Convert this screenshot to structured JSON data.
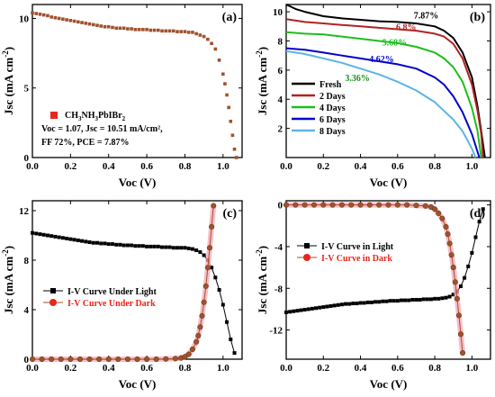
{
  "chart_data": [
    {
      "panel": "(a)",
      "type": "scatter",
      "xlabel": "Voc (V)",
      "ylabel": "Jsc (mA cm⁻²)",
      "xlim": [
        0,
        1.1
      ],
      "ylim": [
        0,
        11
      ],
      "xticks": [
        0.0,
        0.2,
        0.4,
        0.6,
        0.8,
        1.0
      ],
      "yticks": [
        0,
        5,
        10
      ],
      "tick_labels_x": [
        "0.0",
        "0.2",
        "0.4",
        "0.6",
        "0.8",
        "1.0"
      ],
      "tick_labels_y": [
        "0",
        "5",
        "10"
      ],
      "grid": false,
      "series": [
        {
          "color": "#a0522d",
          "marker": "square",
          "x": [
            0.0,
            0.02,
            0.04,
            0.06,
            0.08,
            0.1,
            0.12,
            0.14,
            0.16,
            0.18,
            0.2,
            0.22,
            0.24,
            0.26,
            0.28,
            0.3,
            0.32,
            0.34,
            0.36,
            0.38,
            0.4,
            0.42,
            0.44,
            0.46,
            0.48,
            0.5,
            0.52,
            0.54,
            0.56,
            0.58,
            0.6,
            0.62,
            0.64,
            0.66,
            0.68,
            0.7,
            0.72,
            0.74,
            0.76,
            0.78,
            0.8,
            0.82,
            0.84,
            0.86,
            0.88,
            0.9,
            0.92,
            0.94,
            0.96,
            0.98,
            1.0,
            1.01,
            1.02,
            1.03,
            1.04,
            1.05,
            1.06,
            1.07
          ],
          "y": [
            10.4,
            10.35,
            10.3,
            10.25,
            10.2,
            10.1,
            10.05,
            10.0,
            9.95,
            9.9,
            9.85,
            9.8,
            9.75,
            9.7,
            9.65,
            9.6,
            9.55,
            9.5,
            9.45,
            9.4,
            9.4,
            9.35,
            9.3,
            9.3,
            9.3,
            9.25,
            9.25,
            9.2,
            9.2,
            9.2,
            9.2,
            9.15,
            9.15,
            9.15,
            9.1,
            9.1,
            9.1,
            9.1,
            9.05,
            9.05,
            9.05,
            9.0,
            9.0,
            8.9,
            8.8,
            8.7,
            8.5,
            8.2,
            7.8,
            7.0,
            6.0,
            5.3,
            4.5,
            3.6,
            2.6,
            1.6,
            0.6,
            0.0
          ]
        }
      ],
      "legend": {
        "placement": "bottom-left",
        "marker_color": "#e8261c",
        "label": "CH3NH3PbIBr2",
        "lines": [
          "Voc = 1.07, Jsc = 10.51 mA/cm²,",
          "FF 72%, PCE = 7.87%"
        ]
      }
    },
    {
      "panel": "(b)",
      "type": "line",
      "xlabel": "Voc (V)",
      "ylabel": "Jsc (mA cm⁻²)",
      "xlim": [
        0,
        1.1
      ],
      "ylim": [
        0,
        10.5
      ],
      "xticks": [
        0.0,
        0.2,
        0.4,
        0.6,
        0.8,
        1.0
      ],
      "yticks": [
        2,
        4,
        6,
        8,
        10
      ],
      "tick_labels_x": [
        "0.0",
        "0.2",
        "0.4",
        "0.6",
        "0.8",
        "1.0"
      ],
      "tick_labels_y": [
        "2",
        "4",
        "6",
        "8",
        "10"
      ],
      "grid": false,
      "legend_placement": "bottom-left",
      "series": [
        {
          "name": "Fresh",
          "color": "#000000",
          "annotation": "7.87%",
          "annotation_color": "#000000",
          "annotation_at": [
            0.82,
            9.55
          ],
          "x": [
            0.0,
            0.05,
            0.1,
            0.2,
            0.3,
            0.4,
            0.5,
            0.6,
            0.7,
            0.8,
            0.85,
            0.9,
            0.95,
            1.0,
            1.03,
            1.05,
            1.07
          ],
          "y": [
            10.5,
            10.2,
            10.0,
            9.7,
            9.55,
            9.45,
            9.35,
            9.3,
            9.2,
            9.0,
            8.7,
            8.2,
            7.2,
            5.5,
            3.5,
            1.8,
            0.0
          ]
        },
        {
          "name": "2 Days",
          "color": "#b22222",
          "annotation": "6.8%",
          "annotation_color": "#b22222",
          "annotation_at": [
            0.7,
            8.75
          ],
          "x": [
            0.0,
            0.1,
            0.2,
            0.3,
            0.4,
            0.5,
            0.6,
            0.7,
            0.8,
            0.85,
            0.9,
            0.95,
            1.0,
            1.03,
            1.05,
            1.06
          ],
          "y": [
            9.5,
            9.3,
            9.2,
            9.1,
            9.0,
            8.9,
            8.8,
            8.7,
            8.5,
            8.3,
            7.8,
            6.8,
            5.0,
            3.2,
            1.6,
            0.0
          ]
        },
        {
          "name": "4 Days",
          "color": "#1bbf1b",
          "annotation": "5.68%",
          "annotation_color": "#1bbf1b",
          "annotation_at": [
            0.65,
            7.7
          ],
          "x": [
            0.0,
            0.1,
            0.2,
            0.3,
            0.4,
            0.5,
            0.6,
            0.7,
            0.8,
            0.85,
            0.9,
            0.95,
            1.0,
            1.03,
            1.05
          ],
          "y": [
            8.6,
            8.5,
            8.45,
            8.3,
            8.15,
            8.0,
            7.85,
            7.6,
            7.2,
            6.8,
            6.2,
            5.2,
            3.4,
            1.8,
            0.0
          ]
        },
        {
          "name": "6 Days",
          "color": "#0000cd",
          "annotation": "4.62%",
          "annotation_color": "#0000cd",
          "annotation_at": [
            0.58,
            6.55
          ],
          "x": [
            0.0,
            0.1,
            0.2,
            0.3,
            0.4,
            0.5,
            0.6,
            0.7,
            0.8,
            0.85,
            0.9,
            0.95,
            1.0,
            1.02,
            1.04
          ],
          "y": [
            7.5,
            7.4,
            7.2,
            7.0,
            6.8,
            6.6,
            6.4,
            6.1,
            5.5,
            5.0,
            4.2,
            3.1,
            1.6,
            0.8,
            0.0
          ]
        },
        {
          "name": "8 Days",
          "color": "#5bb5e6",
          "annotation": "3.36%",
          "annotation_color": "#1a8f1a",
          "annotation_at": [
            0.45,
            5.25
          ],
          "x": [
            0.0,
            0.1,
            0.2,
            0.3,
            0.4,
            0.5,
            0.6,
            0.7,
            0.8,
            0.85,
            0.9,
            0.95,
            0.98,
            1.0,
            1.02
          ],
          "y": [
            7.3,
            7.1,
            6.8,
            6.5,
            6.1,
            5.7,
            5.2,
            4.6,
            3.8,
            3.2,
            2.6,
            1.8,
            1.1,
            0.6,
            0.0
          ]
        }
      ]
    },
    {
      "panel": "(c)",
      "type": "line",
      "xlabel": "Voc (V)",
      "ylabel": "Jsc (mA cm⁻²)",
      "xlim": [
        0,
        1.1
      ],
      "ylim": [
        0,
        12.8
      ],
      "xticks": [
        0.0,
        0.2,
        0.4,
        0.6,
        0.8,
        1.0
      ],
      "yticks": [
        0,
        4,
        8,
        12
      ],
      "tick_labels_x": [
        "0.0",
        "0.2",
        "0.4",
        "0.6",
        "0.8",
        "1.0"
      ],
      "tick_labels_y": [
        "0",
        "4",
        "8",
        "12"
      ],
      "grid": false,
      "legend_placement": "bottom-left",
      "series": [
        {
          "name": "I-V Curve Under Light",
          "color": "#000000",
          "marker": "square",
          "label_color": "#000000",
          "x": [
            0.0,
            0.02,
            0.04,
            0.06,
            0.08,
            0.1,
            0.12,
            0.14,
            0.16,
            0.18,
            0.2,
            0.22,
            0.24,
            0.26,
            0.28,
            0.3,
            0.32,
            0.34,
            0.36,
            0.38,
            0.4,
            0.42,
            0.44,
            0.46,
            0.48,
            0.5,
            0.52,
            0.54,
            0.56,
            0.58,
            0.6,
            0.62,
            0.64,
            0.66,
            0.68,
            0.7,
            0.72,
            0.74,
            0.76,
            0.78,
            0.8,
            0.82,
            0.84,
            0.86,
            0.88,
            0.9,
            0.92,
            0.94,
            0.96,
            0.98,
            1.0,
            1.02,
            1.04,
            1.06
          ],
          "y": [
            10.2,
            10.15,
            10.1,
            10.05,
            10.0,
            9.95,
            9.9,
            9.85,
            9.8,
            9.75,
            9.7,
            9.65,
            9.6,
            9.55,
            9.5,
            9.45,
            9.4,
            9.4,
            9.35,
            9.35,
            9.3,
            9.3,
            9.25,
            9.25,
            9.2,
            9.2,
            9.2,
            9.15,
            9.15,
            9.15,
            9.1,
            9.1,
            9.1,
            9.1,
            9.05,
            9.05,
            9.05,
            9.0,
            9.0,
            9.0,
            9.0,
            8.95,
            8.9,
            8.8,
            8.65,
            8.4,
            8.0,
            7.4,
            6.6,
            5.6,
            4.4,
            3.0,
            1.6,
            0.5
          ]
        },
        {
          "name": "I-V Curve Under Dark",
          "color": "#a0522d",
          "marker": "circle",
          "label_color": "#e8261c",
          "x": [
            0.0,
            0.05,
            0.1,
            0.15,
            0.2,
            0.25,
            0.3,
            0.35,
            0.4,
            0.45,
            0.5,
            0.55,
            0.6,
            0.65,
            0.7,
            0.75,
            0.78,
            0.8,
            0.82,
            0.84,
            0.86,
            0.87,
            0.88,
            0.89,
            0.9,
            0.91,
            0.92,
            0.93,
            0.94,
            0.95
          ],
          "y": [
            0.0,
            0.0,
            0.0,
            0.0,
            0.0,
            0.0,
            0.0,
            0.0,
            0.0,
            0.0,
            0.0,
            0.0,
            0.0,
            0.0,
            0.02,
            0.05,
            0.1,
            0.2,
            0.4,
            0.8,
            1.4,
            1.9,
            2.6,
            3.5,
            4.6,
            5.9,
            7.4,
            9.0,
            10.7,
            12.4
          ]
        }
      ]
    },
    {
      "panel": "(d)",
      "type": "line",
      "xlabel": "Voc (V)",
      "ylabel": "Jsc (mA cm⁻²)",
      "xlim": [
        0,
        1.1
      ],
      "ylim": [
        -14.8,
        0.4
      ],
      "xticks": [
        0.0,
        0.2,
        0.4,
        0.6,
        0.8,
        1.0
      ],
      "yticks": [
        0,
        -4,
        -8,
        -12
      ],
      "tick_labels_x": [
        "0.0",
        "0.2",
        "0.4",
        "0.6",
        "0.8",
        "1.0"
      ],
      "tick_labels_y": [
        "0",
        "-4",
        "-8",
        "-12"
      ],
      "grid": false,
      "legend_placement": "middle-left",
      "series": [
        {
          "name": "I-V Curve in Light",
          "color": "#000000",
          "marker": "square",
          "label_color": "#000000",
          "x": [
            0.0,
            0.02,
            0.04,
            0.06,
            0.08,
            0.1,
            0.12,
            0.14,
            0.16,
            0.18,
            0.2,
            0.22,
            0.24,
            0.26,
            0.28,
            0.3,
            0.32,
            0.34,
            0.36,
            0.38,
            0.4,
            0.42,
            0.44,
            0.46,
            0.48,
            0.5,
            0.52,
            0.54,
            0.56,
            0.58,
            0.6,
            0.62,
            0.64,
            0.66,
            0.68,
            0.7,
            0.72,
            0.74,
            0.76,
            0.78,
            0.8,
            0.82,
            0.84,
            0.86,
            0.88,
            0.9,
            0.92,
            0.94,
            0.96,
            0.98,
            1.0,
            1.02,
            1.04,
            1.06
          ],
          "y": [
            -10.3,
            -10.25,
            -10.2,
            -10.15,
            -10.1,
            -10.05,
            -10.0,
            -9.95,
            -9.9,
            -9.85,
            -9.8,
            -9.75,
            -9.7,
            -9.65,
            -9.6,
            -9.55,
            -9.5,
            -9.5,
            -9.45,
            -9.45,
            -9.4,
            -9.4,
            -9.35,
            -9.35,
            -9.3,
            -9.3,
            -9.25,
            -9.25,
            -9.2,
            -9.2,
            -9.2,
            -9.15,
            -9.15,
            -9.15,
            -9.1,
            -9.1,
            -9.1,
            -9.05,
            -9.05,
            -9.05,
            -9.0,
            -9.0,
            -8.95,
            -8.9,
            -8.8,
            -8.6,
            -8.3,
            -7.8,
            -7.0,
            -5.9,
            -4.6,
            -3.1,
            -1.6,
            -0.4
          ]
        },
        {
          "name": "I-V Curve in Dark",
          "color": "#a0522d",
          "marker": "circle",
          "label_color": "#e8261c",
          "x": [
            0.0,
            0.05,
            0.1,
            0.15,
            0.2,
            0.25,
            0.3,
            0.35,
            0.4,
            0.45,
            0.5,
            0.55,
            0.6,
            0.65,
            0.7,
            0.75,
            0.78,
            0.8,
            0.82,
            0.84,
            0.86,
            0.87,
            0.88,
            0.89,
            0.9,
            0.91,
            0.92,
            0.93,
            0.94,
            0.95
          ],
          "y": [
            0.0,
            0.0,
            0.0,
            0.0,
            0.0,
            0.0,
            0.0,
            0.0,
            0.0,
            0.0,
            0.0,
            0.0,
            0.0,
            0.0,
            -0.05,
            -0.1,
            -0.2,
            -0.4,
            -0.8,
            -1.3,
            -2.1,
            -2.8,
            -3.7,
            -4.8,
            -6.0,
            -7.4,
            -9.0,
            -10.6,
            -12.4,
            -14.2
          ]
        }
      ]
    }
  ]
}
